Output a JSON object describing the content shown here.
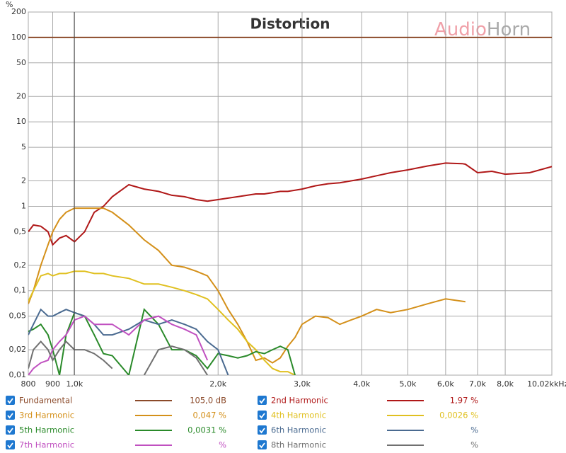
{
  "chart_data": {
    "type": "line",
    "title": "Distortion",
    "brand": [
      "Audio",
      "Horn"
    ],
    "y_unit": "%",
    "x_unit": "kHz",
    "log_x": true,
    "log_y": true,
    "grid": true,
    "xlim": [
      800,
      10020
    ],
    "ylim": [
      0.01,
      200
    ],
    "xticks": [
      800,
      900,
      {
        "value": 1000,
        "label": "1,0k"
      },
      {
        "value": 2000,
        "label": "2,0k"
      },
      {
        "value": 3000,
        "label": "3,0k"
      },
      {
        "value": 4000,
        "label": "4,0k"
      },
      {
        "value": 5000,
        "label": "5,0k"
      },
      {
        "value": 6000,
        "label": "6,0k"
      },
      {
        "value": 7000,
        "label": "7,0k"
      },
      {
        "value": 8000,
        "label": "8,0k"
      },
      {
        "value": 10020,
        "label": "10,02k"
      }
    ],
    "yticks": [
      200,
      100,
      50,
      20,
      10,
      5,
      2,
      1,
      {
        "value": 0.5,
        "label": "0,5"
      },
      {
        "value": 0.2,
        "label": "0,2"
      },
      {
        "value": 0.1,
        "label": "0,1"
      },
      {
        "value": 0.05,
        "label": "0,05"
      },
      {
        "value": 0.02,
        "label": "0,02"
      },
      {
        "value": 0.01,
        "label": "0,01"
      }
    ],
    "x": [
      800,
      820,
      850,
      880,
      900,
      930,
      960,
      1000,
      1050,
      1100,
      1150,
      1200,
      1300,
      1400,
      1500,
      1600,
      1700,
      1800,
      1900,
      2000,
      2100,
      2200,
      2300,
      2400,
      2500,
      2600,
      2700,
      2800,
      2900,
      3000,
      3200,
      3400,
      3600,
      3800,
      4000,
      4300,
      4600,
      5000,
      5500,
      6000,
      6500,
      6600,
      7000,
      7500,
      8000,
      9000,
      10020
    ],
    "series": [
      {
        "name": "Fundamental",
        "color": "#8b4a2a",
        "readout": "105,0 dB",
        "values": [
          100,
          100,
          100,
          100,
          100,
          100,
          100,
          100,
          100,
          100,
          100,
          100,
          100,
          100,
          100,
          100,
          100,
          100,
          100,
          100,
          100,
          100,
          100,
          100,
          100,
          100,
          100,
          100,
          100,
          100,
          100,
          100,
          100,
          100,
          100,
          100,
          100,
          100,
          100,
          100,
          100,
          100,
          100,
          100,
          100,
          100,
          100
        ]
      },
      {
        "name": "2nd Harmonic",
        "color": "#b01818",
        "readout": "1,97 %",
        "values": [
          0.5,
          0.6,
          0.58,
          0.5,
          0.35,
          0.42,
          0.45,
          0.38,
          0.5,
          0.85,
          1.0,
          1.3,
          1.8,
          1.6,
          1.5,
          1.35,
          1.3,
          1.2,
          1.15,
          1.2,
          1.25,
          1.3,
          1.35,
          1.4,
          1.4,
          1.45,
          1.5,
          1.5,
          1.55,
          1.6,
          1.75,
          1.85,
          1.9,
          2.0,
          2.1,
          2.3,
          2.5,
          2.7,
          3.0,
          3.25,
          3.2,
          3.15,
          2.5,
          2.6,
          2.4,
          2.5,
          2.95
        ]
      },
      {
        "name": "3rd Harmonic",
        "color": "#d4901a",
        "readout": "0,047 %",
        "values": [
          0.07,
          0.1,
          0.2,
          0.35,
          0.5,
          0.7,
          0.85,
          0.95,
          0.95,
          0.95,
          0.95,
          0.85,
          0.6,
          0.4,
          0.3,
          0.2,
          0.19,
          0.17,
          0.15,
          0.1,
          0.06,
          0.04,
          0.025,
          0.015,
          0.016,
          0.014,
          0.016,
          0.022,
          0.028,
          0.04,
          0.05,
          0.048,
          0.04,
          0.045,
          0.05,
          0.06,
          0.055,
          0.06,
          0.07,
          0.08,
          0.075,
          0.074,
          null,
          null,
          null,
          null,
          null
        ]
      },
      {
        "name": "4th Harmonic",
        "color": "#e0c020",
        "readout": "0,0026 %",
        "values": [
          0.075,
          0.1,
          0.15,
          0.16,
          0.15,
          0.16,
          0.16,
          0.17,
          0.17,
          0.16,
          0.16,
          0.15,
          0.14,
          0.12,
          0.12,
          0.11,
          0.1,
          0.09,
          0.08,
          0.06,
          0.045,
          0.035,
          0.025,
          0.02,
          0.015,
          0.012,
          0.011,
          0.011,
          0.01,
          null,
          null,
          null,
          null,
          null,
          null,
          null,
          null,
          null,
          null,
          null,
          null,
          null,
          null,
          null,
          null,
          null,
          null
        ]
      },
      {
        "name": "5th Harmonic",
        "color": "#2a8a2a",
        "readout": "0,0031 %",
        "values": [
          0.033,
          0.035,
          0.04,
          0.03,
          0.02,
          0.01,
          0.03,
          0.055,
          0.05,
          0.03,
          0.018,
          0.017,
          0.01,
          0.06,
          0.04,
          0.02,
          0.02,
          0.017,
          0.012,
          0.018,
          0.017,
          0.016,
          0.017,
          0.019,
          0.018,
          0.02,
          0.022,
          0.02,
          0.01,
          null,
          null,
          null,
          null,
          null,
          null,
          null,
          null,
          null,
          null,
          null,
          null,
          null,
          null,
          null,
          null,
          null,
          null
        ]
      },
      {
        "name": "6th Harmonic",
        "color": "#4a6a90",
        "readout": "%",
        "values": [
          0.03,
          0.04,
          0.06,
          0.05,
          0.05,
          0.055,
          0.06,
          0.055,
          0.05,
          0.04,
          0.03,
          0.03,
          0.035,
          0.045,
          0.04,
          0.045,
          0.04,
          0.035,
          0.025,
          0.02,
          0.01,
          null,
          null,
          null,
          null,
          null,
          null,
          null,
          null,
          null,
          null,
          null,
          null,
          null,
          null,
          null,
          null,
          null,
          null,
          null,
          null,
          null,
          null,
          null,
          null,
          null,
          null
        ]
      },
      {
        "name": "7th Harmonic",
        "color": "#c050c0",
        "readout": "%",
        "values": [
          0.01,
          0.012,
          0.014,
          0.015,
          0.02,
          0.025,
          0.03,
          0.045,
          0.05,
          0.04,
          0.04,
          0.04,
          0.03,
          0.045,
          0.05,
          0.04,
          0.035,
          0.03,
          0.015,
          null,
          null,
          null,
          null,
          null,
          null,
          null,
          null,
          null,
          null,
          null,
          null,
          null,
          null,
          null,
          null,
          null,
          null,
          null,
          null,
          null,
          null,
          null,
          null,
          null,
          null,
          null,
          null
        ]
      },
      {
        "name": "8th Harmonic",
        "color": "#707070",
        "readout": "%",
        "values": [
          0.012,
          0.02,
          0.025,
          0.02,
          0.015,
          0.02,
          0.025,
          0.02,
          0.02,
          0.018,
          0.015,
          0.012,
          null,
          0.01,
          0.02,
          0.022,
          0.02,
          0.016,
          0.01,
          null,
          null,
          null,
          null,
          null,
          null,
          null,
          null,
          null,
          null,
          null,
          null,
          null,
          null,
          null,
          null,
          null,
          null,
          null,
          null,
          null,
          null,
          null,
          null,
          null,
          null,
          null,
          null
        ]
      }
    ]
  }
}
